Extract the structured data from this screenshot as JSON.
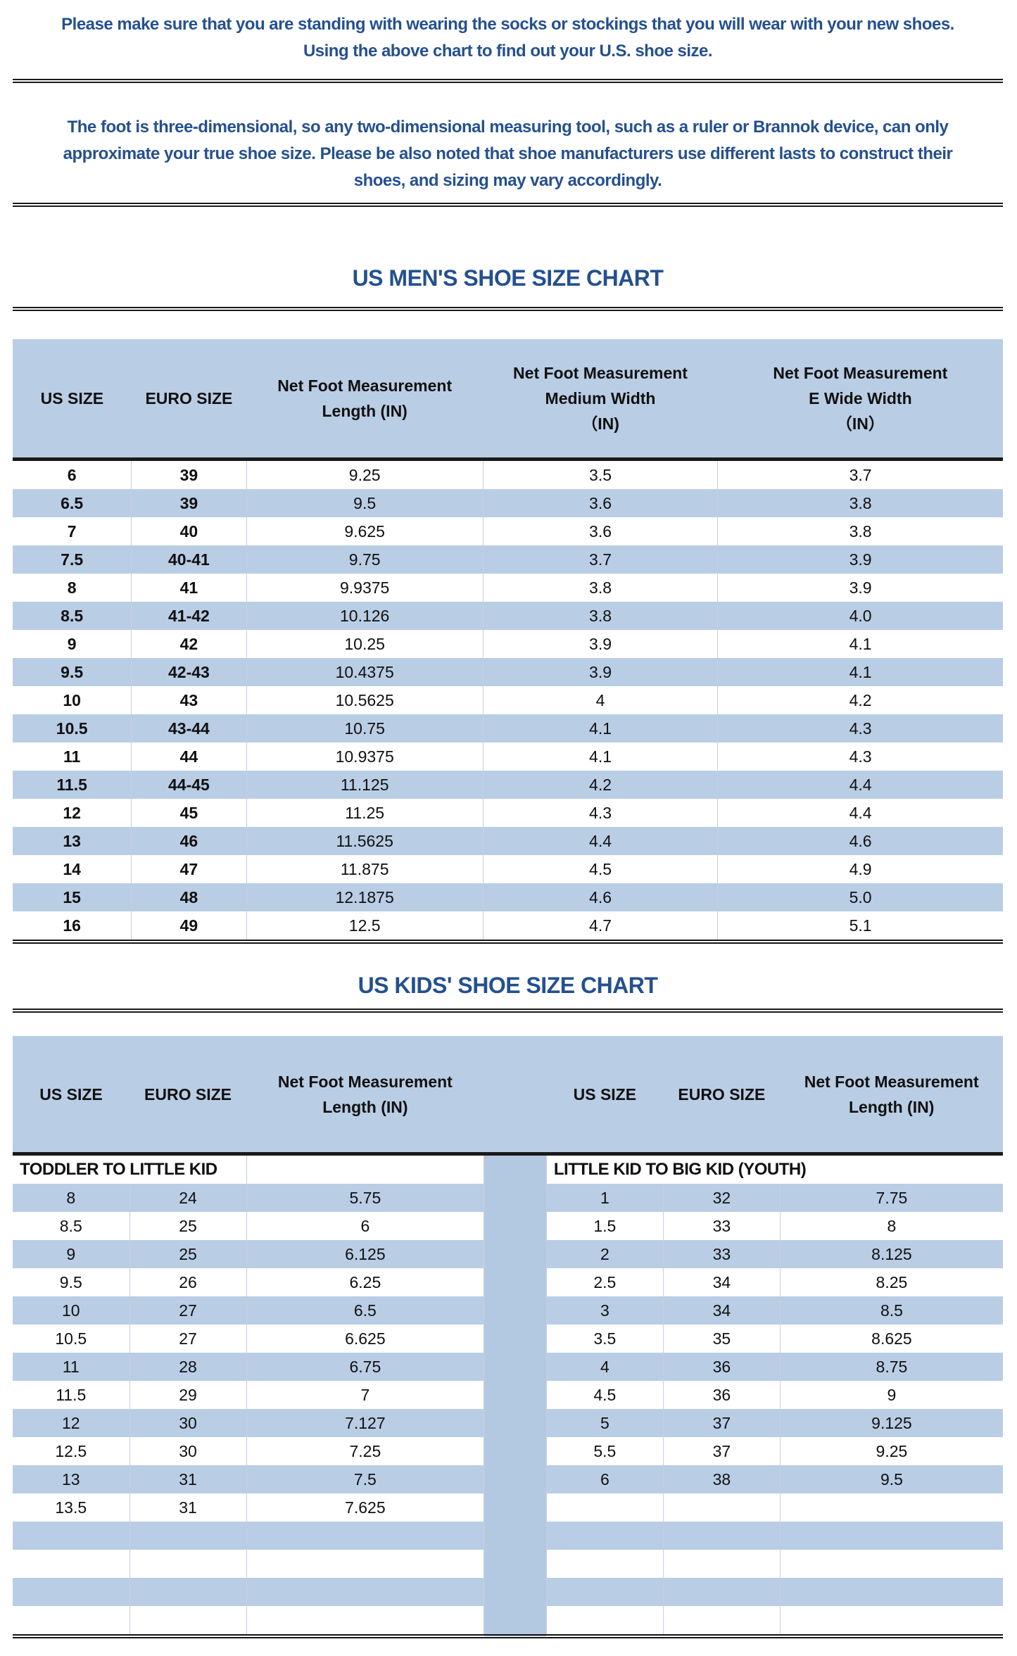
{
  "colors": {
    "accent_text": "#25508f",
    "table_header_blue": "#b9cde5",
    "row_blue": "#b9cde5",
    "gap_blue": "#b3c9e2",
    "rule_black": "#1a1a1a"
  },
  "intro1": {
    "lines": [
      "Please make sure that you are standing with wearing the socks or stockings that you will wear with your new shoes.",
      "Using the above chart to find out your U.S. shoe size."
    ]
  },
  "intro2": {
    "lines": [
      "The foot is three-dimensional, so any two-dimensional measuring tool, such as a ruler or Brannok device, can only",
      "approximate your true shoe size. Please be also noted that shoe manufacturers use different lasts to construct their",
      "shoes, and sizing may vary accordingly."
    ]
  },
  "mens_chart": {
    "title": "US MEN'S SHOE SIZE CHART",
    "headers": [
      "US SIZE",
      "EURO SIZE",
      "Net Foot Measurement\nLength (IN)",
      "Net Foot Measurement\nMedium Width\n（IN)",
      "Net Foot Measurement\nE Wide Width\n（IN）"
    ],
    "rows": [
      [
        "6",
        "39",
        "9.25",
        "3.5",
        "3.7"
      ],
      [
        "6.5",
        "39",
        "9.5",
        "3.6",
        "3.8"
      ],
      [
        "7",
        "40",
        "9.625",
        "3.6",
        "3.8"
      ],
      [
        "7.5",
        "40-41",
        "9.75",
        "3.7",
        "3.9"
      ],
      [
        "8",
        "41",
        "9.9375",
        "3.8",
        "3.9"
      ],
      [
        "8.5",
        "41-42",
        "10.126",
        "3.8",
        "4.0"
      ],
      [
        "9",
        "42",
        "10.25",
        "3.9",
        "4.1"
      ],
      [
        "9.5",
        "42-43",
        "10.4375",
        "3.9",
        "4.1"
      ],
      [
        "10",
        "43",
        "10.5625",
        "4",
        "4.2"
      ],
      [
        "10.5",
        "43-44",
        "10.75",
        "4.1",
        "4.3"
      ],
      [
        "11",
        "44",
        "10.9375",
        "4.1",
        "4.3"
      ],
      [
        "11.5",
        "44-45",
        "11.125",
        "4.2",
        "4.4"
      ],
      [
        "12",
        "45",
        "11.25",
        "4.3",
        "4.4"
      ],
      [
        "13",
        "46",
        "11.5625",
        "4.4",
        "4.6"
      ],
      [
        "14",
        "47",
        "11.875",
        "4.5",
        "4.9"
      ],
      [
        "15",
        "48",
        "12.1875",
        "4.6",
        "5.0"
      ],
      [
        "16",
        "49",
        "12.5",
        "4.7",
        "5.1"
      ]
    ]
  },
  "kids_chart": {
    "title": "US KIDS' SHOE SIZE CHART",
    "headers": [
      "US SIZE",
      "EURO SIZE",
      "Net Foot Measurement\nLength (IN)",
      "US SIZE",
      "EURO SIZE",
      "Net Foot Measurement\nLength (IN)"
    ],
    "left_section_label": "TODDLER TO LITTLE KID",
    "right_section_label": "LITTLE KID TO BIG KID (YOUTH)",
    "left_rows": [
      [
        "8",
        "24",
        "5.75"
      ],
      [
        "8.5",
        "25",
        "6"
      ],
      [
        "9",
        "25",
        "6.125"
      ],
      [
        "9.5",
        "26",
        "6.25"
      ],
      [
        "10",
        "27",
        "6.5"
      ],
      [
        "10.5",
        "27",
        "6.625"
      ],
      [
        "11",
        "28",
        "6.75"
      ],
      [
        "11.5",
        "29",
        "7"
      ],
      [
        "12",
        "30",
        "7.127"
      ],
      [
        "12.5",
        "30",
        "7.25"
      ],
      [
        "13",
        "31",
        "7.5"
      ],
      [
        "13.5",
        "31",
        "7.625"
      ]
    ],
    "right_rows": [
      [
        "1",
        "32",
        "7.75"
      ],
      [
        "1.5",
        "33",
        "8"
      ],
      [
        "2",
        "33",
        "8.125"
      ],
      [
        "2.5",
        "34",
        "8.25"
      ],
      [
        "3",
        "34",
        "8.5"
      ],
      [
        "3.5",
        "35",
        "8.625"
      ],
      [
        "4",
        "36",
        "8.75"
      ],
      [
        "4.5",
        "36",
        "9"
      ],
      [
        "5",
        "37",
        "9.125"
      ],
      [
        "5.5",
        "37",
        "9.25"
      ],
      [
        "6",
        "38",
        "9.5"
      ]
    ],
    "total_body_rows": 16
  }
}
